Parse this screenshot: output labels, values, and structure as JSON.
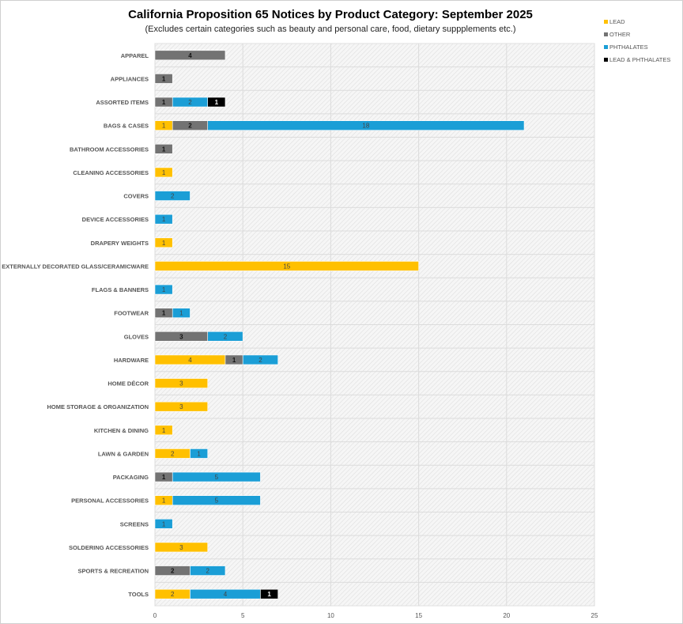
{
  "chart_data": {
    "type": "bar",
    "orientation": "horizontal",
    "stacked": true,
    "title": "California Proposition 65 Notices by Product Category: September 2025",
    "subtitle": "(Excludes certain categories such as beauty and personal care, food, dietary suppplements etc.)",
    "xlabel": "",
    "ylabel": "",
    "xlim": [
      0,
      25
    ],
    "xticks": [
      0,
      5,
      10,
      15,
      20,
      25
    ],
    "grid": true,
    "legend_position": "top-right",
    "categories": [
      "APPAREL",
      "APPLIANCES",
      "ASSORTED ITEMS",
      "BAGS & CASES",
      "BATHROOM ACCESSORIES",
      "CLEANING ACCESSORIES",
      "COVERS",
      "DEVICE ACCESSORIES",
      "DRAPERY WEIGHTS",
      "EXTERNALLY DECORATED GLASS/CERAMICWARE",
      "FLAGS & BANNERS",
      "FOOTWEAR",
      "GLOVES",
      "HARDWARE",
      "HOME DÉCOR",
      "HOME STORAGE & ORGANIZATION",
      "KITCHEN & DINING",
      "LAWN & GARDEN",
      "PACKAGING",
      "PERSONAL ACCESSORIES",
      "SCREENS",
      "SOLDERING ACCESSORIES",
      "SPORTS & RECREATION",
      "TOOLS"
    ],
    "series": [
      {
        "name": "LEAD",
        "color": "#FFC000",
        "values": [
          0,
          0,
          0,
          1,
          0,
          1,
          0,
          0,
          1,
          15,
          0,
          0,
          0,
          4,
          3,
          3,
          1,
          2,
          0,
          1,
          0,
          3,
          0,
          2
        ]
      },
      {
        "name": "OTHER",
        "color": "#737373",
        "values": [
          4,
          1,
          1,
          2,
          1,
          0,
          0,
          0,
          0,
          0,
          0,
          1,
          3,
          1,
          0,
          0,
          0,
          0,
          1,
          0,
          0,
          0,
          2,
          0
        ]
      },
      {
        "name": "PHTHALATES",
        "color": "#1B9ED6",
        "values": [
          0,
          0,
          2,
          18,
          0,
          0,
          2,
          1,
          0,
          0,
          1,
          1,
          2,
          2,
          0,
          0,
          0,
          1,
          5,
          5,
          1,
          0,
          2,
          4
        ]
      },
      {
        "name": "LEAD & PHTHALATES",
        "color": "#000000",
        "values": [
          0,
          0,
          1,
          0,
          0,
          0,
          0,
          0,
          0,
          0,
          0,
          0,
          0,
          0,
          0,
          0,
          0,
          0,
          0,
          0,
          0,
          0,
          0,
          1
        ]
      }
    ]
  }
}
